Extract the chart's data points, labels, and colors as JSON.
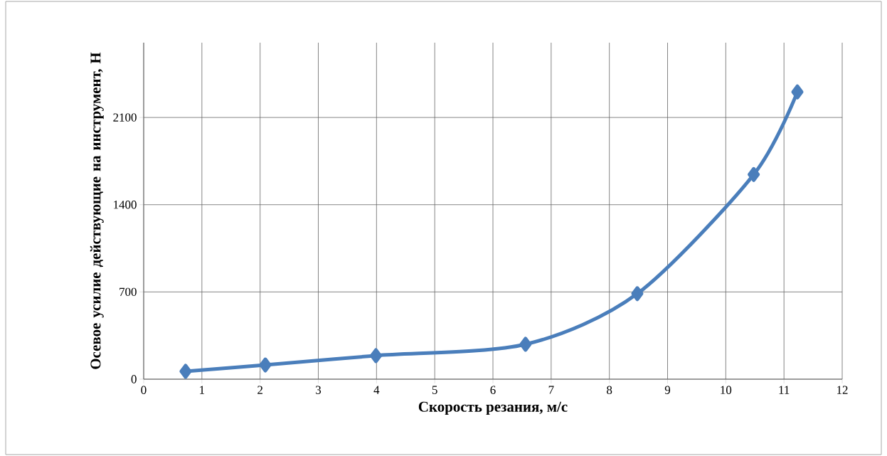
{
  "chart_data": {
    "type": "line",
    "xlabel": "Скорость резания, м/с",
    "ylabel": "Осевое усилие действующие на инструмент, Н",
    "x": [
      0.72,
      2.09,
      3.99,
      6.56,
      8.48,
      10.48,
      11.23
    ],
    "series": [
      {
        "color": "#4a7ebb",
        "values": [
          63,
          114,
          189,
          280,
          686,
          1642,
          2305
        ]
      }
    ],
    "xlim": [
      0,
      12
    ],
    "xticks": [
      0,
      1,
      2,
      3,
      4,
      5,
      6,
      7,
      8,
      9,
      10,
      11,
      12
    ],
    "ylim": [
      0,
      2700
    ],
    "yticks": [
      0,
      700,
      1400,
      2100
    ],
    "grid": true,
    "marker": "diamond",
    "line_style": "solid"
  }
}
